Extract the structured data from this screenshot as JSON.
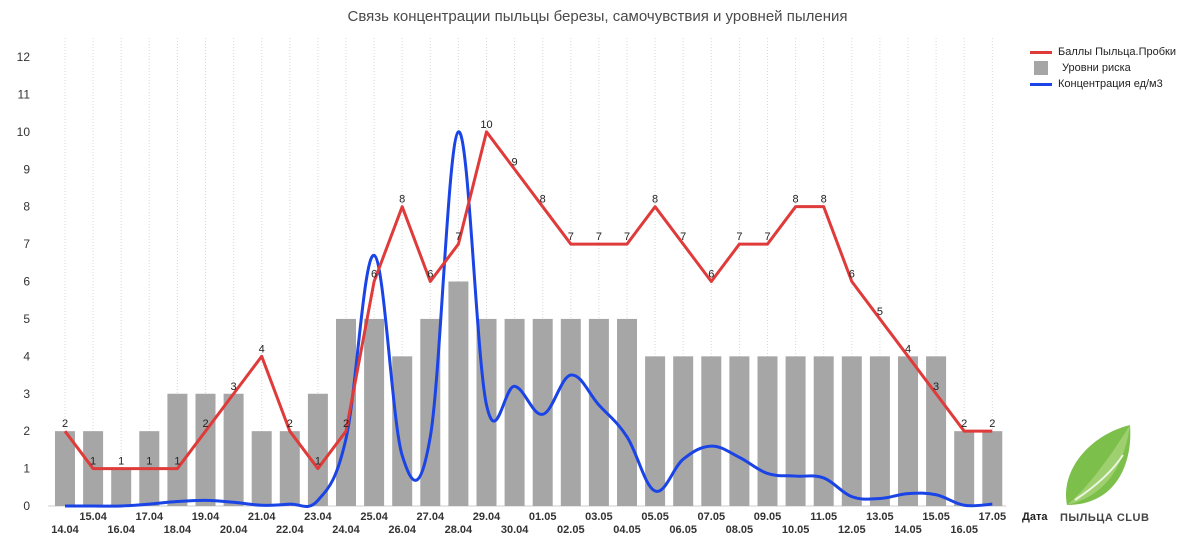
{
  "chart_data": {
    "type": "bar+line",
    "title": "Связь концентрации пыльцы березы, самочувствия и уровней пыления",
    "xlabel": "Дата",
    "ylim": [
      0,
      12
    ],
    "yticks": [
      0,
      1,
      2,
      3,
      4,
      5,
      6,
      7,
      8,
      9,
      10,
      11,
      12
    ],
    "grid": true,
    "legend_position": "top-right",
    "categories": [
      "14.04",
      "15.04",
      "16.04",
      "17.04",
      "18.04",
      "19.04",
      "20.04",
      "21.04",
      "22.04",
      "23.04",
      "24.04",
      "25.04",
      "26.04",
      "27.04",
      "28.04",
      "29.04",
      "30.04",
      "01.05",
      "02.05",
      "03.05",
      "04.05",
      "05.05",
      "06.05",
      "07.05",
      "08.05",
      "09.05",
      "10.05",
      "11.05",
      "12.05",
      "13.05",
      "14.05",
      "15.05",
      "16.05",
      "17.05"
    ],
    "series": [
      {
        "name": "Баллы Пыльца.Пробки",
        "type": "line",
        "color": "#e03b3b",
        "values": [
          2,
          1,
          1,
          1,
          1,
          2,
          3,
          4,
          2,
          1,
          2,
          6,
          8,
          6,
          7,
          10,
          9,
          8,
          7,
          7,
          7,
          8,
          7,
          6,
          7,
          7,
          8,
          8,
          6,
          5,
          4,
          3,
          2,
          2
        ],
        "labels": [
          "2",
          "1",
          "1",
          "1",
          "1",
          "2",
          "3",
          "4",
          "2",
          "1",
          "2",
          "6",
          "8",
          "6",
          "7",
          "10",
          "9",
          "8",
          "7",
          "7",
          "7",
          "8",
          "7",
          "6",
          "7",
          "7",
          "8",
          "8",
          "6",
          "5",
          "4",
          "3",
          "2",
          "2"
        ]
      },
      {
        "name": "Уровни риска",
        "type": "bar",
        "color": "#a6a6a6",
        "values": [
          2,
          2,
          1,
          2,
          3,
          3,
          3,
          2,
          2,
          3,
          5,
          5,
          4,
          5,
          6,
          5,
          5,
          5,
          5,
          5,
          5,
          4,
          4,
          4,
          4,
          4,
          4,
          4,
          4,
          4,
          4,
          4,
          2,
          2
        ]
      },
      {
        "name": "Концентрация ед/м3",
        "type": "line",
        "color": "#1a44e6",
        "values": [
          0,
          0,
          0,
          0.05,
          0.12,
          0.15,
          0.1,
          0.02,
          0.05,
          0.15,
          1.8,
          6.7,
          1.35,
          1.85,
          10,
          2.7,
          3.2,
          2.45,
          3.5,
          2.7,
          1.85,
          0.4,
          1.25,
          1.6,
          1.3,
          0.87,
          0.8,
          0.75,
          0.25,
          0.2,
          0.33,
          0.3,
          0.02,
          0.05
        ]
      }
    ]
  },
  "logo": {
    "text": "ПЫЛЬЦА CLUB"
  }
}
